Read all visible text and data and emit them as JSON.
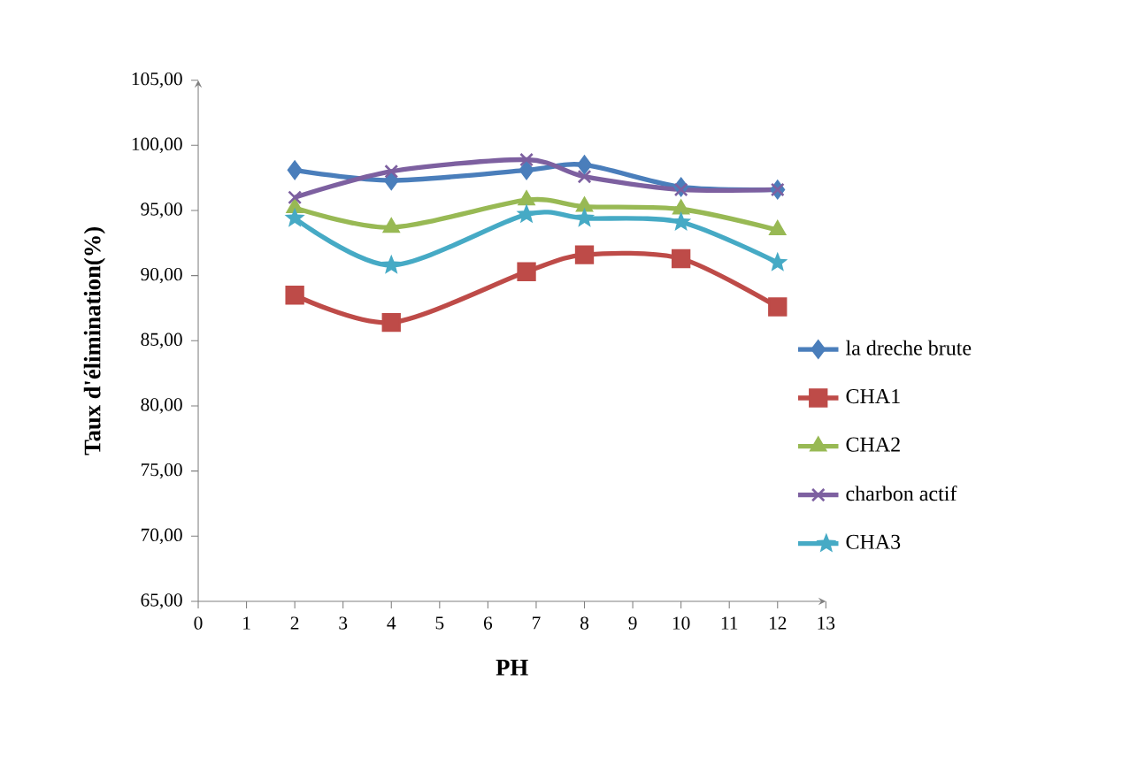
{
  "chart_data": {
    "type": "line",
    "xlabel": "PH",
    "ylabel": "Taux d'élimination(%)",
    "xlim": [
      0,
      13
    ],
    "ylim": [
      65,
      105
    ],
    "xticks": [
      0,
      1,
      2,
      3,
      4,
      5,
      6,
      7,
      8,
      9,
      10,
      11,
      12,
      13
    ],
    "yticks": [
      {
        "value": 65,
        "label": "65,00"
      },
      {
        "value": 70,
        "label": "70,00"
      },
      {
        "value": 75,
        "label": "75,00"
      },
      {
        "value": 80,
        "label": "80,00"
      },
      {
        "value": 85,
        "label": "85,00"
      },
      {
        "value": 90,
        "label": "90,00"
      },
      {
        "value": 95,
        "label": "95,00"
      },
      {
        "value": 100,
        "label": "100,00"
      },
      {
        "value": 105,
        "label": "105,00"
      }
    ],
    "x": [
      2,
      4,
      6.8,
      8,
      10,
      12
    ],
    "grid": false,
    "legend": "right",
    "series": [
      {
        "name": "la dreche brute",
        "color": "#4a7ebb",
        "marker": "diamond",
        "values": [
          98.1,
          97.3,
          98.1,
          98.5,
          96.8,
          96.6
        ]
      },
      {
        "name": "CHA1",
        "color": "#be4b48",
        "marker": "square",
        "values": [
          88.5,
          86.4,
          90.3,
          91.6,
          91.3,
          87.6
        ]
      },
      {
        "name": "CHA2",
        "color": "#98b954",
        "marker": "triangle",
        "values": [
          95.2,
          93.7,
          95.8,
          95.3,
          95.1,
          93.5
        ]
      },
      {
        "name": "charbon actif",
        "color": "#7d60a0",
        "marker": "cross",
        "values": [
          96.0,
          98.0,
          98.9,
          97.6,
          96.6,
          96.6
        ]
      },
      {
        "name": "CHA3",
        "color": "#46aac5",
        "marker": "star",
        "values": [
          94.4,
          90.8,
          94.7,
          94.4,
          94.1,
          91.0
        ]
      }
    ]
  }
}
